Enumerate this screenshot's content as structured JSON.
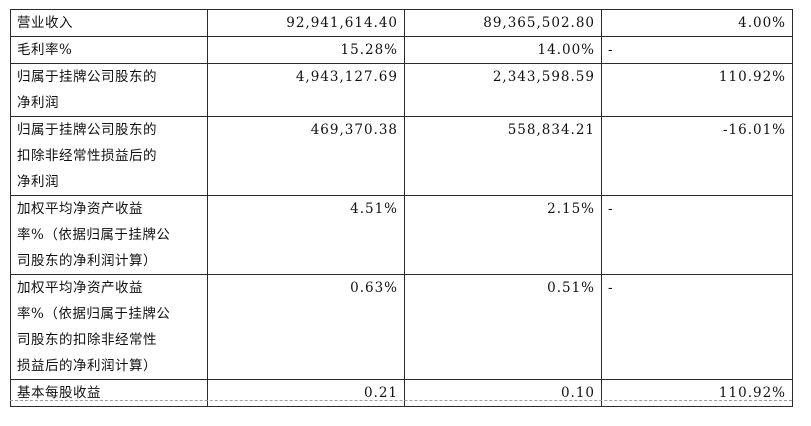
{
  "rows": [
    {
      "label_lines": [
        "营业收入"
      ],
      "current": "92,941,614.40",
      "previous": "89,365,502.80",
      "change": "4.00%"
    },
    {
      "label_lines": [
        "毛利率%"
      ],
      "current": "15.28%",
      "previous": "14.00%",
      "change": "-"
    },
    {
      "label_lines": [
        "归属于挂牌公司股东的",
        "净利润"
      ],
      "current": "4,943,127.69",
      "previous": "2,343,598.59",
      "change": "110.92%"
    },
    {
      "label_lines": [
        "归属于挂牌公司股东的",
        "扣除非经常性损益后的",
        "净利润"
      ],
      "current": "469,370.38",
      "previous": "558,834.21",
      "change": "-16.01%"
    },
    {
      "label_lines": [
        "加权平均净资产收益",
        "率%（依据归属于挂牌公",
        "司股东的净利润计算）"
      ],
      "current": "4.51%",
      "previous": "2.15%",
      "change": "-"
    },
    {
      "label_lines": [
        "加权平均净资产收益",
        "率%（依据归属于挂牌公",
        "司股东的扣除非经常性",
        "损益后的净利润计算）"
      ],
      "current": "0.63%",
      "previous": "0.51%",
      "change": "-"
    },
    {
      "label_lines": [
        "基本每股收益"
      ],
      "current": "0.21",
      "previous": "0.10",
      "change": "110.92%"
    }
  ]
}
